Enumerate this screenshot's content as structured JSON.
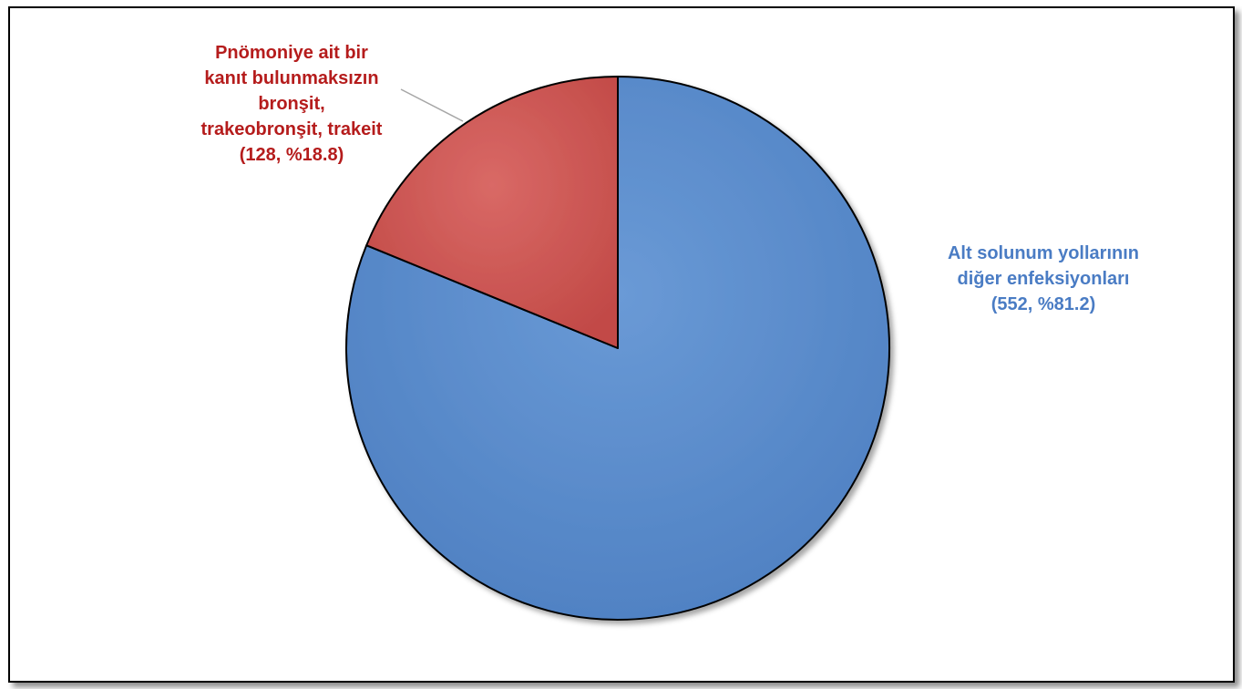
{
  "chart_data": {
    "type": "pie",
    "title": "",
    "slices": [
      {
        "label_lines": [
          "Alt solunum yollarının",
          "diğer enfeksiyonları",
          "(552, %81.2)"
        ],
        "value": 552,
        "percent": 81.2,
        "color": "#5b8ccb"
      },
      {
        "label_lines": [
          "Pnömoniye ait bir",
          "kanıt bulunmaksızın",
          "bronşit,",
          "trakeobronşit, trakeit",
          "(128, %18.8)"
        ],
        "value": 128,
        "percent": 18.8,
        "color": "#cd5955"
      }
    ],
    "start_angle_deg": 0,
    "direction": "clockwise",
    "legend": "none",
    "label_colors": [
      "#4a7cc4",
      "#b51c1c"
    ]
  }
}
